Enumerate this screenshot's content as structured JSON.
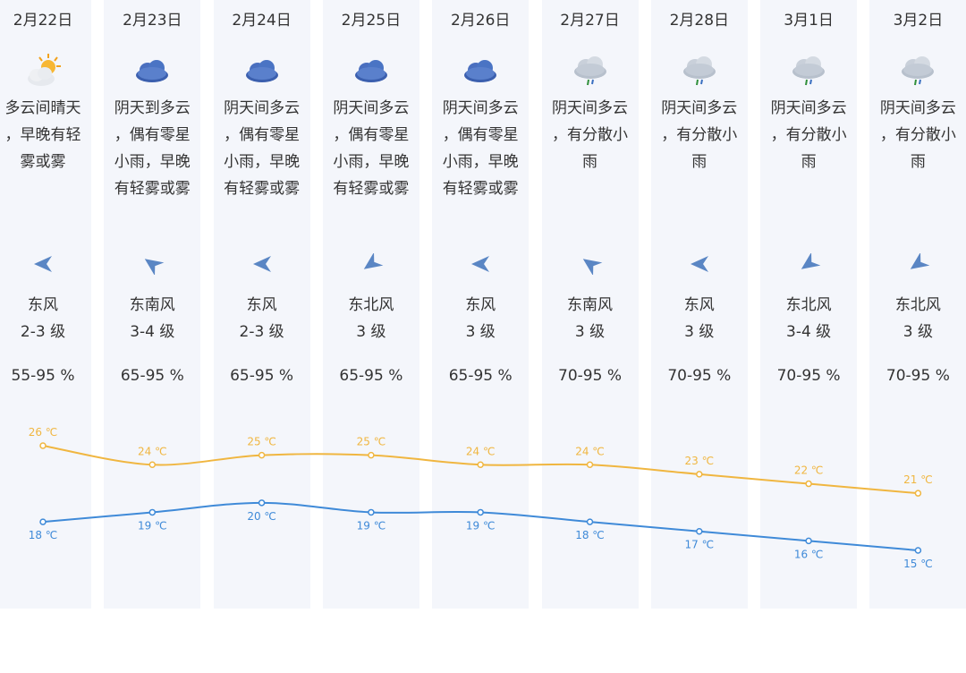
{
  "days": [
    {
      "date": "2月22日",
      "icon": "partly-sunny-icon",
      "desc": "多云间晴天，早晚有轻雾或雾",
      "wind_icon": "wind-arrow-east-icon",
      "wind_rot": 0,
      "wind_dir": "东风",
      "wind_level": "2-3 级",
      "humidity": "55-95 %",
      "high": "26 ℃",
      "low": "18 ℃"
    },
    {
      "date": "2月23日",
      "icon": "overcast-icon",
      "desc": "阴天到多云，偶有零星小雨，早晚有轻雾或雾",
      "wind_icon": "wind-arrow-southeast-icon",
      "wind_rot": 35,
      "wind_dir": "东南风",
      "wind_level": "3-4 级",
      "humidity": "65-95 %",
      "high": "24 ℃",
      "low": "19 ℃"
    },
    {
      "date": "2月24日",
      "icon": "overcast-icon",
      "desc": "阴天间多云，偶有零星小雨，早晚有轻雾或雾",
      "wind_icon": "wind-arrow-east-icon",
      "wind_rot": 0,
      "wind_dir": "东风",
      "wind_level": "2-3 级",
      "humidity": "65-95 %",
      "high": "25 ℃",
      "low": "20 ℃"
    },
    {
      "date": "2月25日",
      "icon": "overcast-icon",
      "desc": "阴天间多云，偶有零星小雨，早晚有轻雾或雾",
      "wind_icon": "wind-arrow-northeast-icon",
      "wind_rot": -35,
      "wind_dir": "东北风",
      "wind_level": "3 级",
      "humidity": "65-95 %",
      "high": "25 ℃",
      "low": "19 ℃"
    },
    {
      "date": "2月26日",
      "icon": "overcast-icon",
      "desc": "阴天间多云，偶有零星小雨，早晚有轻雾或雾",
      "wind_icon": "wind-arrow-east-icon",
      "wind_rot": 0,
      "wind_dir": "东风",
      "wind_level": "3 级",
      "humidity": "65-95 %",
      "high": "24 ℃",
      "low": "19 ℃"
    },
    {
      "date": "2月27日",
      "icon": "light-rain-icon",
      "desc": "阴天间多云，有分散小雨",
      "wind_icon": "wind-arrow-southeast-icon",
      "wind_rot": 35,
      "wind_dir": "东南风",
      "wind_level": "3 级",
      "humidity": "70-95 %",
      "high": "24 ℃",
      "low": "18 ℃"
    },
    {
      "date": "2月28日",
      "icon": "light-rain-icon",
      "desc": "阴天间多云，有分散小雨",
      "wind_icon": "wind-arrow-east-icon",
      "wind_rot": 0,
      "wind_dir": "东风",
      "wind_level": "3 级",
      "humidity": "70-95 %",
      "high": "23 ℃",
      "low": "17 ℃"
    },
    {
      "date": "3月1日",
      "icon": "light-rain-icon",
      "desc": "阴天间多云，有分散小雨",
      "wind_icon": "wind-arrow-northeast-icon",
      "wind_rot": -35,
      "wind_dir": "东北风",
      "wind_level": "3-4 级",
      "humidity": "70-95 %",
      "high": "22 ℃",
      "low": "16 ℃"
    },
    {
      "date": "3月2日",
      "icon": "light-rain-icon",
      "desc": "阴天间多云，有分散小雨",
      "wind_icon": "wind-arrow-northeast-icon",
      "wind_rot": -35,
      "wind_dir": "东北风",
      "wind_level": "3 级",
      "humidity": "70-95 %",
      "high": "21 ℃",
      "low": "15 ℃"
    }
  ],
  "chart_data": {
    "type": "line",
    "categories": [
      "2月22日",
      "2月23日",
      "2月24日",
      "2月25日",
      "2月26日",
      "2月27日",
      "2月28日",
      "3月1日",
      "3月2日"
    ],
    "series": [
      {
        "values": [
          26,
          24,
          25,
          25,
          24,
          24,
          23,
          22,
          21
        ],
        "color": "#f0b640"
      },
      {
        "values": [
          18,
          19,
          20,
          19,
          19,
          18,
          17,
          16,
          15
        ],
        "color": "#3f8ad8"
      }
    ],
    "ylim": [
      15,
      26
    ]
  },
  "colors": {
    "high": "#f0b640",
    "low": "#3f8ad8",
    "column_bg": "#f4f6fb",
    "icon_blue": "#4a78c4"
  }
}
